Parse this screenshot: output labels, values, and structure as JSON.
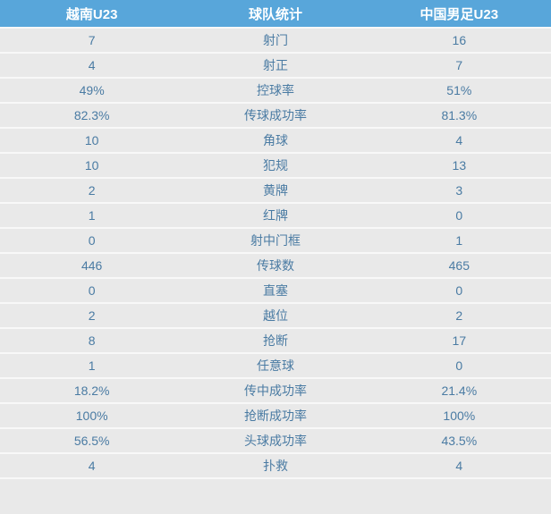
{
  "chart_data": {
    "type": "table",
    "title": "球队统计",
    "columns": [
      "越南U23",
      "球队统计",
      "中国男足U23"
    ],
    "rows": [
      [
        "7",
        "射门",
        "16"
      ],
      [
        "4",
        "射正",
        "7"
      ],
      [
        "49%",
        "控球率",
        "51%"
      ],
      [
        "82.3%",
        "传球成功率",
        "81.3%"
      ],
      [
        "10",
        "角球",
        "4"
      ],
      [
        "10",
        "犯规",
        "13"
      ],
      [
        "2",
        "黄牌",
        "3"
      ],
      [
        "1",
        "红牌",
        "0"
      ],
      [
        "0",
        "射中门框",
        "1"
      ],
      [
        "446",
        "传球数",
        "465"
      ],
      [
        "0",
        "直塞",
        "0"
      ],
      [
        "2",
        "越位",
        "2"
      ],
      [
        "8",
        "抢断",
        "17"
      ],
      [
        "1",
        "任意球",
        "0"
      ],
      [
        "18.2%",
        "传中成功率",
        "21.4%"
      ],
      [
        "100%",
        "抢断成功率",
        "100%"
      ],
      [
        "56.5%",
        "头球成功率",
        "43.5%"
      ],
      [
        "4",
        "扑救",
        "4"
      ]
    ]
  },
  "colors": {
    "header_bg": "#58a6da",
    "header_text": "#ffffff",
    "row_bg": "#e9e9e9",
    "separator": "#f8f8f8",
    "value_text": "#4a7ba3"
  }
}
